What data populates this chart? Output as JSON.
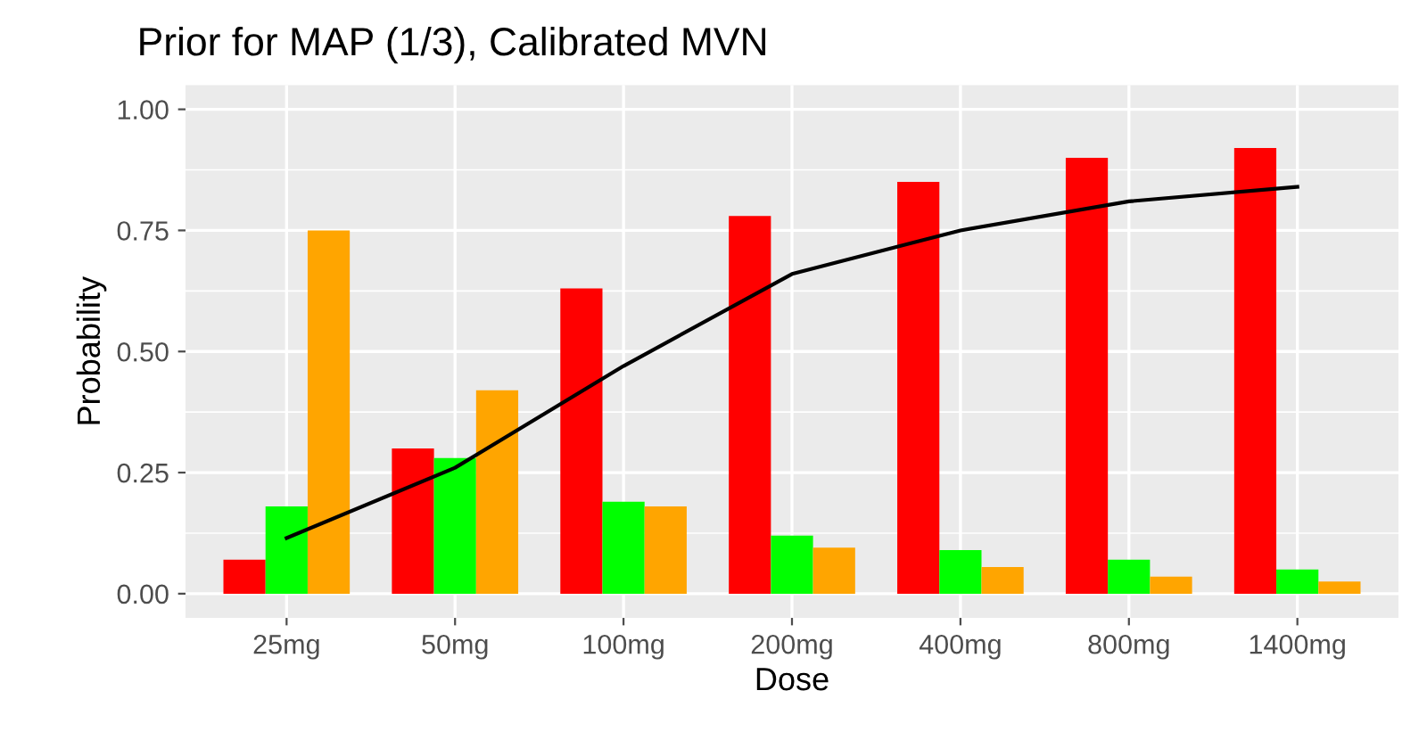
{
  "chart_data": {
    "type": "bar",
    "title": "Prior for MAP (1/3), Calibrated MVN",
    "xlabel": "Dose",
    "ylabel": "Probability",
    "categories": [
      "25mg",
      "50mg",
      "100mg",
      "200mg",
      "400mg",
      "800mg",
      "1400mg"
    ],
    "series": [
      {
        "color": "#ff0000",
        "values": [
          0.07,
          0.3,
          0.63,
          0.78,
          0.85,
          0.9,
          0.92
        ]
      },
      {
        "color": "#00ff00",
        "values": [
          0.18,
          0.28,
          0.19,
          0.12,
          0.09,
          0.07,
          0.05
        ]
      },
      {
        "color": "#ffa500",
        "values": [
          0.75,
          0.42,
          0.18,
          0.095,
          0.055,
          0.035,
          0.025
        ]
      },
      {
        "type": "line",
        "color": "#000000",
        "values": [
          0.115,
          0.26,
          0.47,
          0.66,
          0.75,
          0.81,
          0.84
        ]
      }
    ],
    "ylim": [
      -0.05,
      1.05
    ],
    "yticks": [
      {
        "value": 0,
        "label": "0.00"
      },
      {
        "value": 0.25,
        "label": "0.25"
      },
      {
        "value": 0.5,
        "label": "0.50"
      },
      {
        "value": 0.75,
        "label": "0.75"
      },
      {
        "value": 1,
        "label": "1.00"
      }
    ],
    "grid": true
  }
}
